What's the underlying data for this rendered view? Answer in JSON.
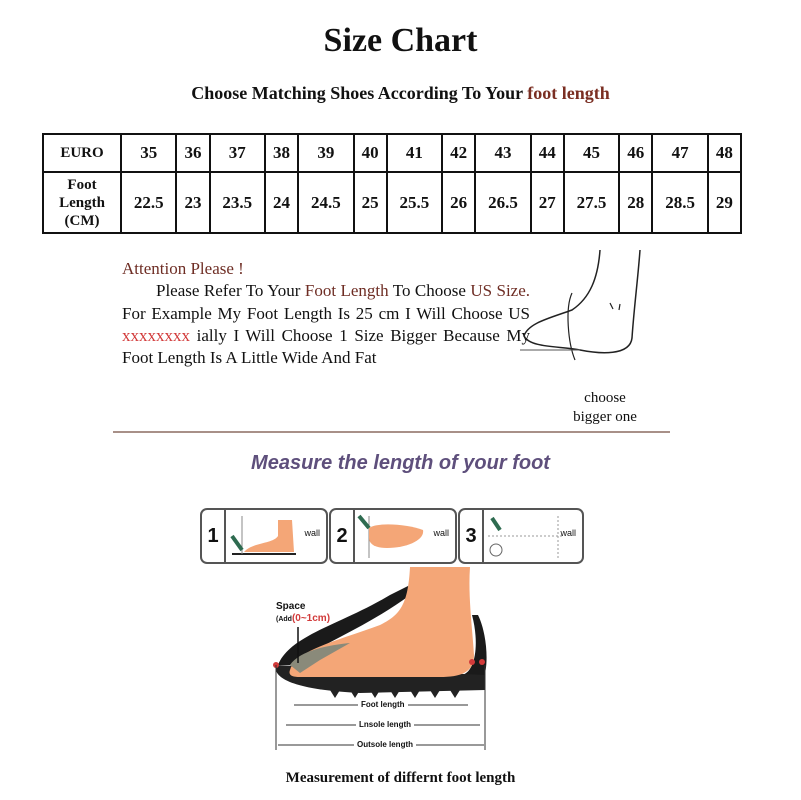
{
  "title": "Size Chart",
  "subtitle": {
    "text": "Choose Matching Shoes According To Your ",
    "highlight": "foot length"
  },
  "table": {
    "row1_label": "EURO",
    "row2_label": "Foot Length (CM)",
    "euro": [
      "35",
      "36",
      "37",
      "38",
      "39",
      "40",
      "41",
      "42",
      "43",
      "44",
      "45",
      "46",
      "47",
      "48"
    ],
    "foot_length": [
      "22.5",
      "23",
      "23.5",
      "24",
      "24.5",
      "25",
      "25.5",
      "26",
      "26.5",
      "27",
      "27.5",
      "28",
      "28.5",
      "29"
    ]
  },
  "attention": {
    "heading": "Attention Please !",
    "p1": "Please Refer To Your ",
    "p1_hl": "Foot Length",
    "p2": " To Choose ",
    "p2_hl": "US Size.",
    "p3": " For Example My Foot Length Is 25 cm I Will Choose US ",
    "p3_red": "xxxxxxxx",
    "p4": " ially I Will Choose 1 Size Bigger Because My Foot Length Is A Little Wide And Fat"
  },
  "choose_note": {
    "line1": "choose",
    "line2": "bigger one"
  },
  "measure_heading": "Measure the length of your foot",
  "steps": [
    {
      "num": "1",
      "wall": "wall"
    },
    {
      "num": "2",
      "wall": "wall"
    },
    {
      "num": "3",
      "wall": "wall"
    }
  ],
  "diagram": {
    "space": "Space",
    "add": "(Add",
    "add_range": "(0~1cm)",
    "foot_length": "Foot length",
    "insole_length": "Lnsole length",
    "outsole_length": "Outsole length"
  },
  "caption": "Measurement of differnt foot length",
  "colors": {
    "brown": "#6e2d24",
    "heading_purple": "#5e4f7c",
    "skin": "#f4a677",
    "red": "#d23a3a"
  }
}
